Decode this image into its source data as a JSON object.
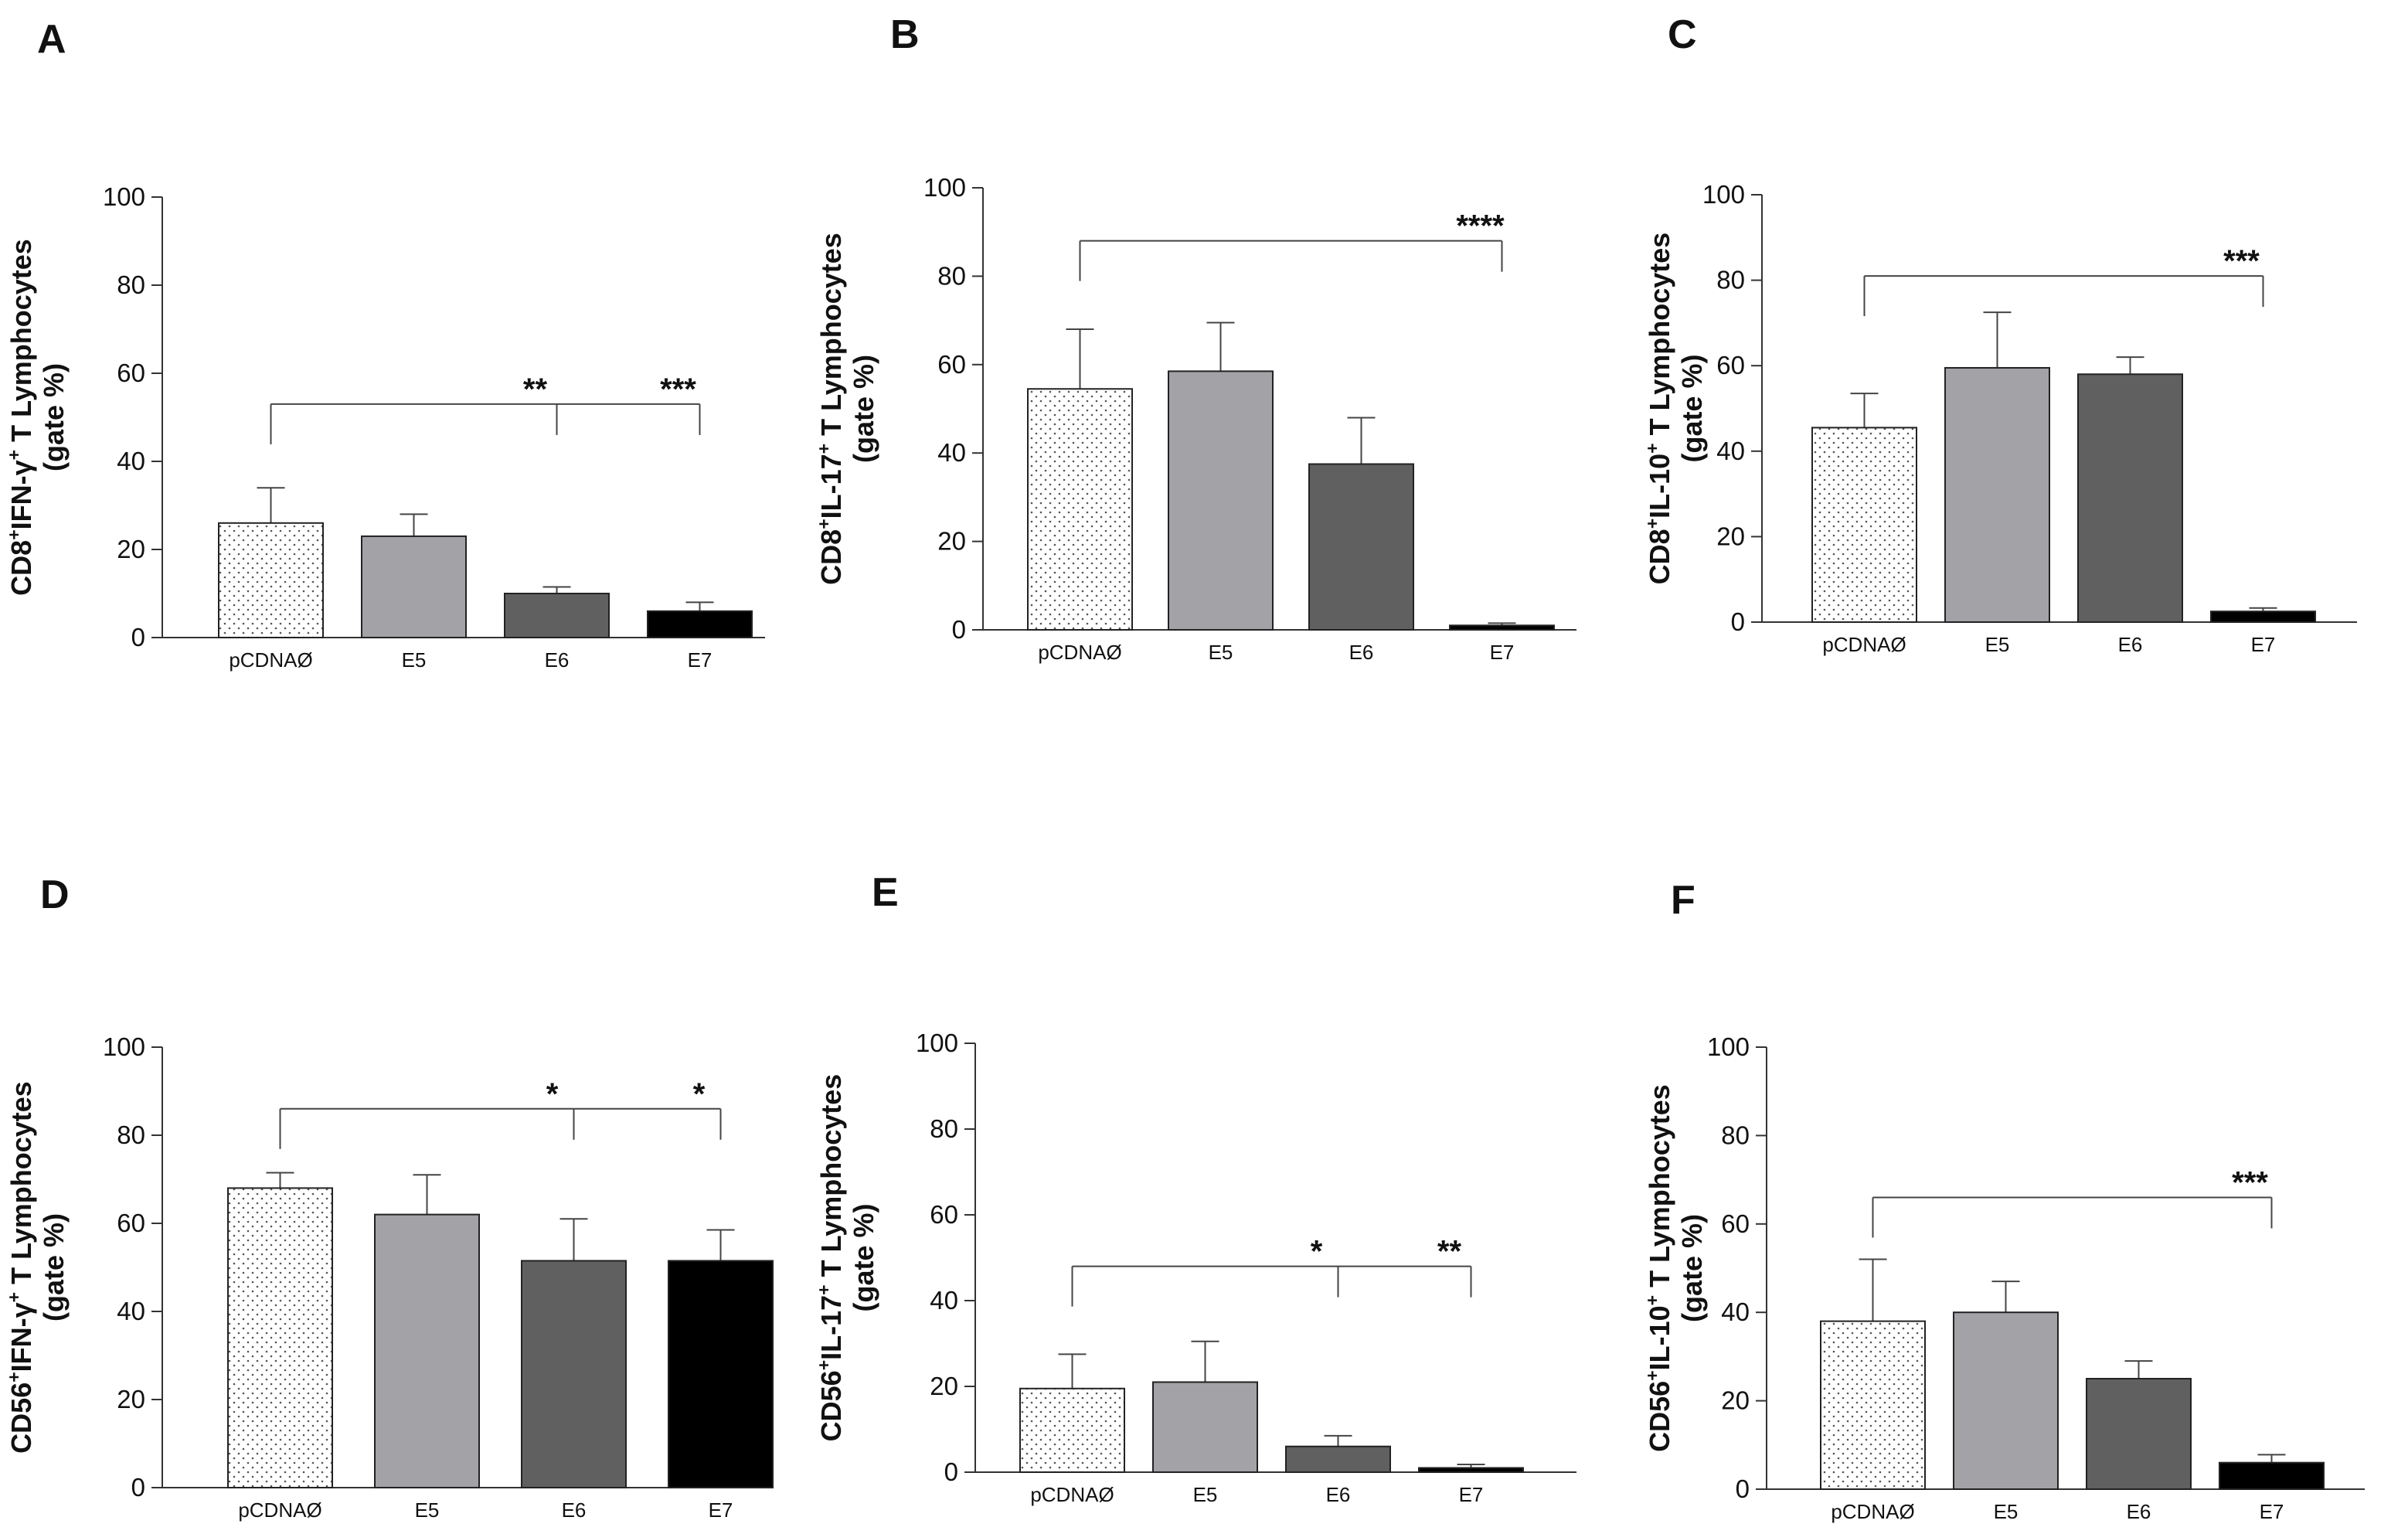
{
  "figure": {
    "panels": [
      {
        "letter": "A",
        "ylabel_line1": [
          "CD8",
          "+",
          "IFN-γ",
          "+",
          " T Lymphocytes"
        ],
        "ylabel_line2": "(gate %)"
      },
      {
        "letter": "B",
        "ylabel_line1": [
          "CD8",
          "+",
          "IL-17",
          "+",
          " T Lymphocytes"
        ],
        "ylabel_line2": "(gate %)"
      },
      {
        "letter": "C",
        "ylabel_line1": [
          "CD8",
          "+",
          "IL-10",
          "+",
          " T Lymphocytes"
        ],
        "ylabel_line2": "(gate %)"
      },
      {
        "letter": "D",
        "ylabel_line1": [
          "CD56",
          "+",
          "IFN-γ",
          "+",
          " T Lymphocytes"
        ],
        "ylabel_line2": "(gate %)"
      },
      {
        "letter": "E",
        "ylabel_line1": [
          "CD56",
          "+",
          "IL-17",
          "+",
          " T Lymphocytes"
        ],
        "ylabel_line2": "(gate %)"
      },
      {
        "letter": "F",
        "ylabel_line1": [
          "CD56",
          "+",
          "IL-10",
          "+",
          " T Lymphocytes"
        ],
        "ylabel_line2": "(gate %)"
      }
    ]
  },
  "chart_data": [
    {
      "type": "bar",
      "panel": "A",
      "categories": [
        "pCDNAØ",
        "E5",
        "E6",
        "E7"
      ],
      "values": [
        26,
        23,
        10,
        6
      ],
      "errors": [
        8,
        5,
        1.5,
        2
      ],
      "ylim": [
        0,
        100
      ],
      "yticks": [
        0,
        20,
        40,
        60,
        80,
        100
      ],
      "ylabel": "CD8+IFN-γ+ T Lymphocytes (gate %)",
      "fills": [
        "dotted",
        "#a2a2a7",
        "#606060",
        "#000000"
      ],
      "significance": {
        "from": "pCDNAØ",
        "to": [
          "E6",
          "E7"
        ],
        "labels": [
          "**",
          "***"
        ],
        "y": 53
      }
    },
    {
      "type": "bar",
      "panel": "B",
      "categories": [
        "pCDNAØ",
        "E5",
        "E6",
        "E7"
      ],
      "values": [
        54.5,
        58.5,
        37.5,
        1
      ],
      "errors": [
        13.5,
        11,
        10.5,
        0.5
      ],
      "ylim": [
        0,
        100
      ],
      "yticks": [
        0,
        20,
        40,
        60,
        80,
        100
      ],
      "ylabel": "CD8+IL-17+ T Lymphocytes (gate %)",
      "fills": [
        "dotted",
        "#a2a2a7",
        "#606060",
        "#000000"
      ],
      "significance": {
        "from": "pCDNAØ",
        "to": [
          "E7"
        ],
        "labels": [
          "****"
        ],
        "y": 88
      }
    },
    {
      "type": "bar",
      "panel": "C",
      "categories": [
        "pCDNAØ",
        "E5",
        "E6",
        "E7"
      ],
      "values": [
        45.5,
        59.5,
        58,
        2.5
      ],
      "errors": [
        8,
        13,
        4,
        0.8
      ],
      "ylim": [
        0,
        100
      ],
      "yticks": [
        0,
        20,
        40,
        60,
        80,
        100
      ],
      "ylabel": "CD8+IL-10+ T Lymphocytes (gate %)",
      "fills": [
        "dotted",
        "#a2a2a7",
        "#606060",
        "#000000"
      ],
      "significance": {
        "from": "pCDNAØ",
        "to": [
          "E7"
        ],
        "labels": [
          "***"
        ],
        "y": 81
      }
    },
    {
      "type": "bar",
      "panel": "D",
      "categories": [
        "pCDNAØ",
        "E5",
        "E6",
        "E7"
      ],
      "values": [
        68,
        62,
        51.5,
        51.5
      ],
      "errors": [
        3.5,
        9,
        9.5,
        7
      ],
      "ylim": [
        0,
        100
      ],
      "yticks": [
        0,
        20,
        40,
        60,
        80,
        100
      ],
      "ylabel": "CD56+IFN-γ+ T Lymphocytes (gate %)",
      "fills": [
        "dotted",
        "#a2a2a7",
        "#606060",
        "#000000"
      ],
      "significance": {
        "from": "pCDNAØ",
        "to": [
          "E6",
          "E7"
        ],
        "labels": [
          "*",
          "*"
        ],
        "y": 86
      }
    },
    {
      "type": "bar",
      "panel": "E",
      "categories": [
        "pCDNAØ",
        "E5",
        "E6",
        "E7"
      ],
      "values": [
        19.5,
        21,
        6,
        1
      ],
      "errors": [
        8,
        9.5,
        2.5,
        0.8
      ],
      "ylim": [
        0,
        100
      ],
      "yticks": [
        0,
        20,
        40,
        60,
        80,
        100
      ],
      "ylabel": "CD56+IL-17+ T Lymphocytes (gate %)",
      "fills": [
        "dotted",
        "#a2a2a7",
        "#606060",
        "#000000"
      ],
      "significance": {
        "from": "pCDNAØ",
        "to": [
          "E6",
          "E7"
        ],
        "labels": [
          "*",
          "**"
        ],
        "y": 48
      }
    },
    {
      "type": "bar",
      "panel": "F",
      "categories": [
        "pCDNAØ",
        "E5",
        "E6",
        "E7"
      ],
      "values": [
        38,
        40,
        25,
        6
      ],
      "errors": [
        14,
        7,
        4,
        1.8
      ],
      "ylim": [
        0,
        100
      ],
      "yticks": [
        0,
        20,
        40,
        60,
        80,
        100
      ],
      "ylabel": "CD56+IL-10+ T Lymphocytes (gate %)",
      "fills": [
        "dotted",
        "#a2a2a7",
        "#606060",
        "#000000"
      ],
      "significance": {
        "from": "pCDNAØ",
        "to": [
          "E7"
        ],
        "labels": [
          "***"
        ],
        "y": 66
      }
    }
  ]
}
